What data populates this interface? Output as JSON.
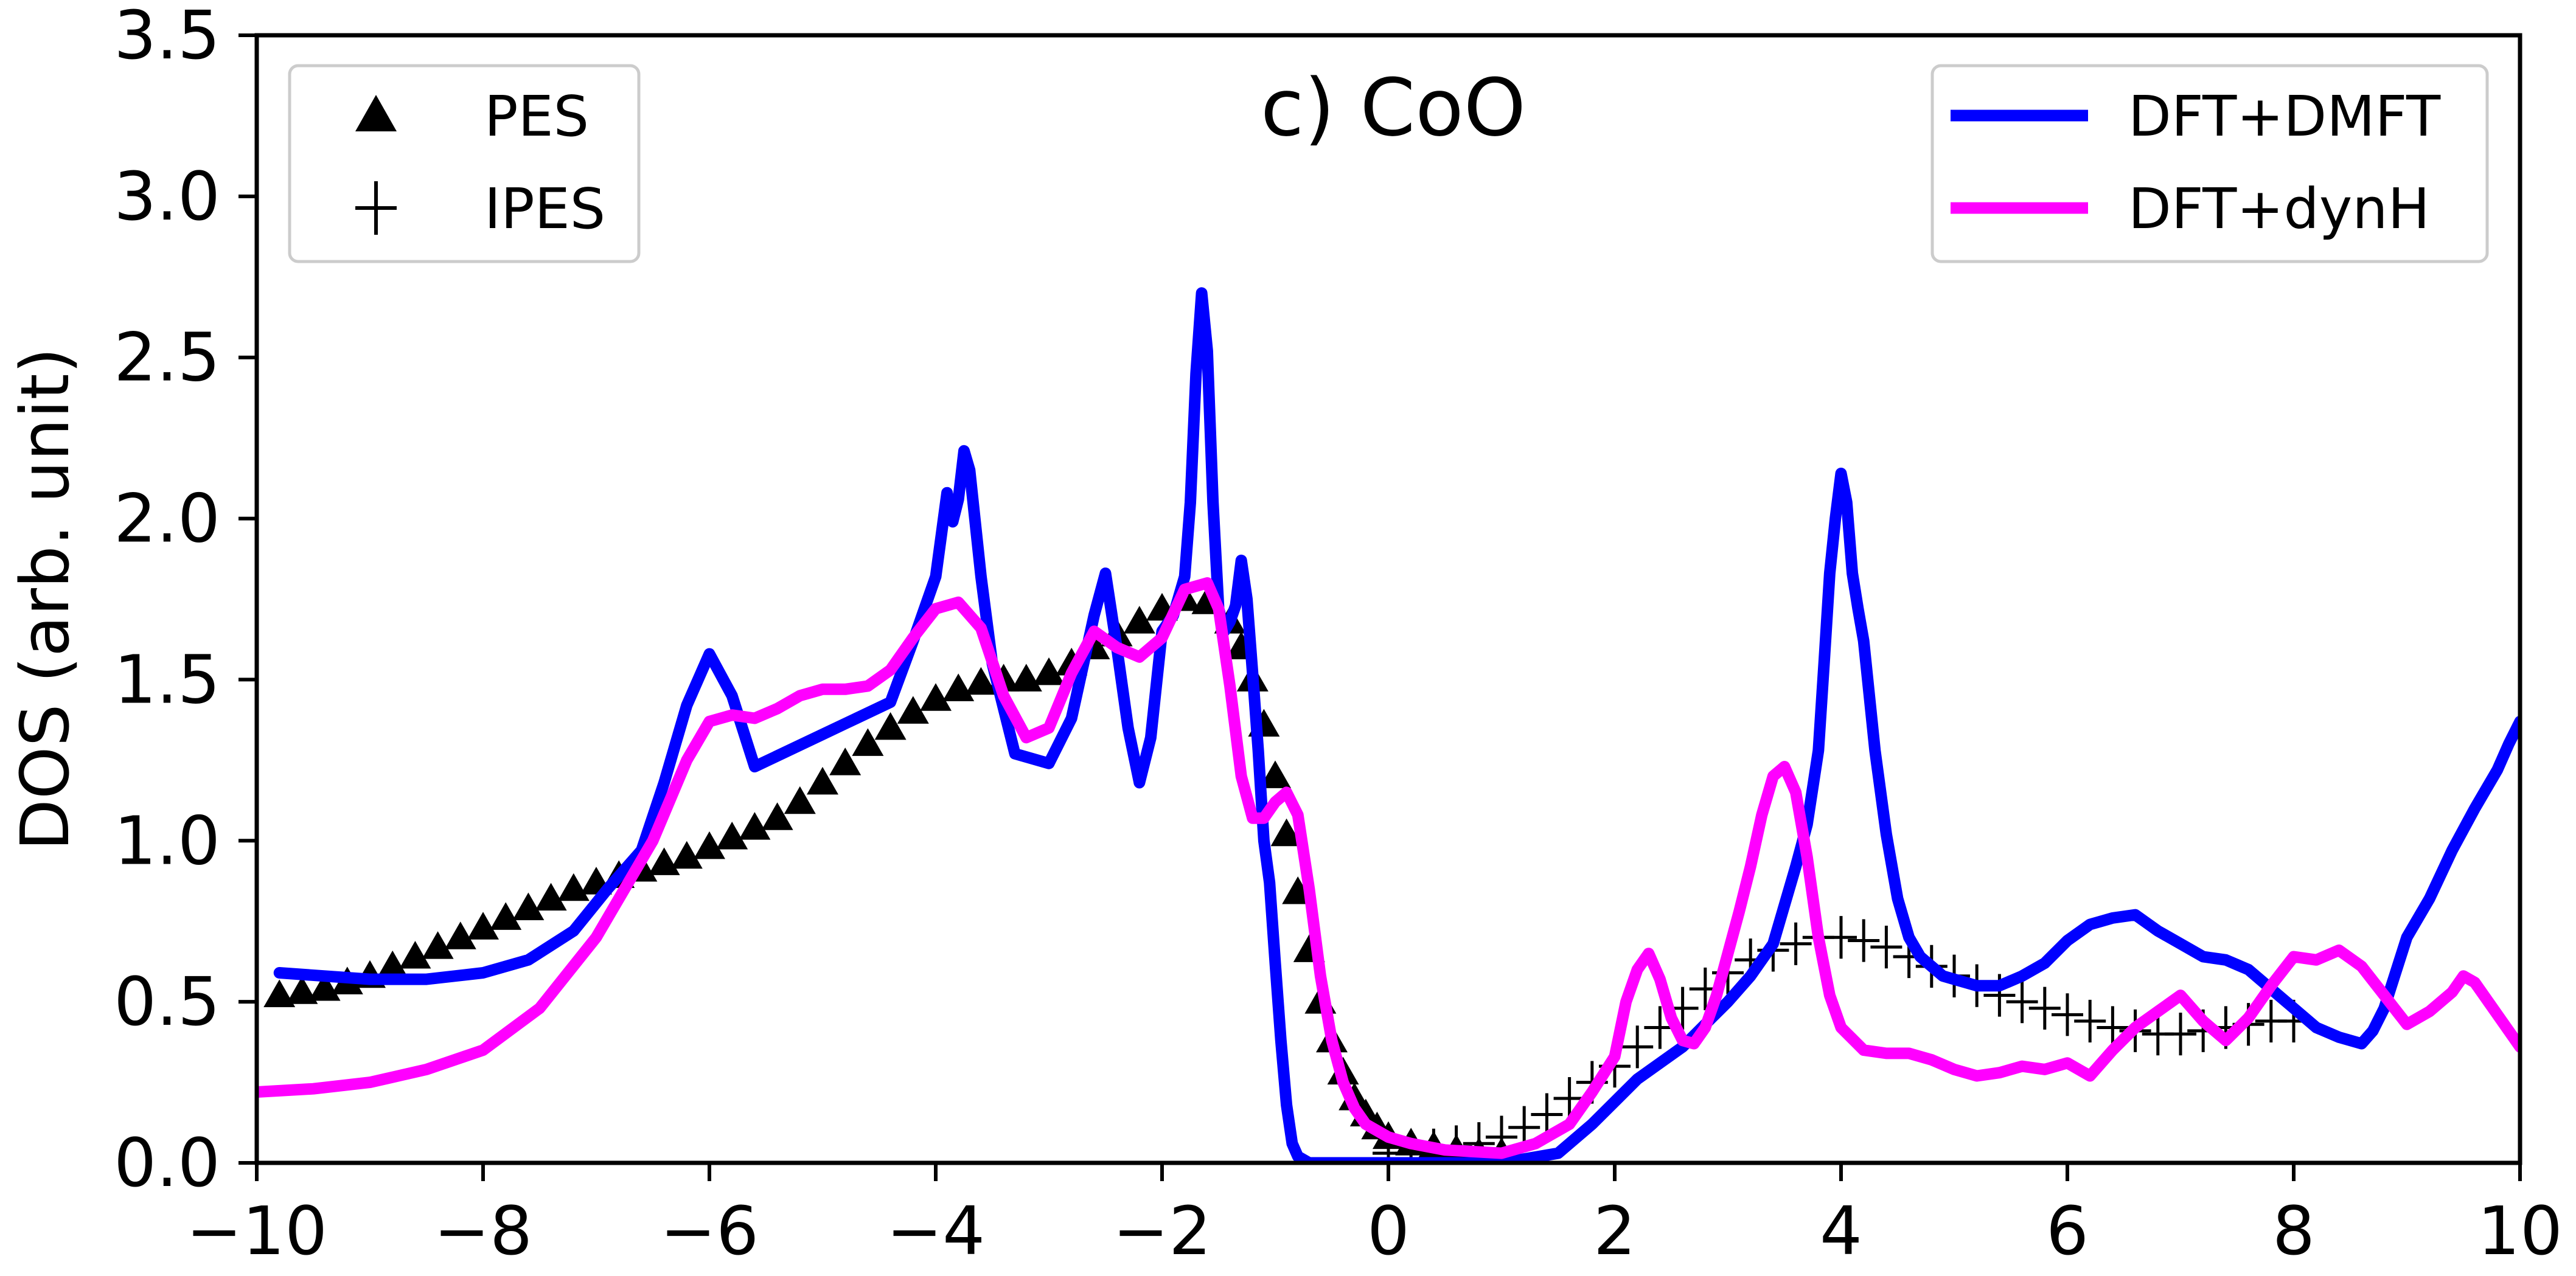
{
  "chart_data": {
    "type": "line",
    "title": "c) CoO",
    "xlabel": "",
    "ylabel": "DOS (arb. unit)",
    "xlim": [
      -10,
      10
    ],
    "ylim": [
      0,
      3.5
    ],
    "grid": false,
    "xticks": [
      -10,
      -8,
      -6,
      -4,
      -2,
      0,
      2,
      4,
      6,
      8,
      10
    ],
    "xtick_labels": [
      "−10",
      "−8",
      "−6",
      "−4",
      "−2",
      "0",
      "2",
      "4",
      "6",
      "8",
      "10"
    ],
    "yticks": [
      0,
      0.5,
      1.0,
      1.5,
      2.0,
      2.5,
      3.0,
      3.5
    ],
    "ytick_labels": [
      "0.0",
      "0.5",
      "1.0",
      "1.5",
      "2.0",
      "2.5",
      "3.0",
      "3.5"
    ],
    "legends": [
      {
        "placement": "top-left",
        "entries": [
          {
            "label": "PES",
            "marker": "triangle"
          },
          {
            "label": "IPES",
            "marker": "plus"
          }
        ]
      },
      {
        "placement": "top-right",
        "entries": [
          {
            "label": "DFT+DMFT",
            "color": "#0000ff"
          },
          {
            "label": "DFT+dynH",
            "color": "#ff00ff"
          }
        ]
      }
    ],
    "series": [
      {
        "name": "DFT+DMFT",
        "kind": "line",
        "color": "#0000ff",
        "x": [
          -9.8,
          -9.0,
          -8.5,
          -8.0,
          -7.6,
          -7.2,
          -6.9,
          -6.6,
          -6.4,
          -6.2,
          -6.0,
          -5.8,
          -5.6,
          -5.3,
          -5.0,
          -4.7,
          -4.4,
          -4.2,
          -4.0,
          -3.95,
          -3.9,
          -3.85,
          -3.8,
          -3.75,
          -3.7,
          -3.6,
          -3.5,
          -3.3,
          -3.0,
          -2.8,
          -2.6,
          -2.5,
          -2.4,
          -2.3,
          -2.2,
          -2.1,
          -2.0,
          -1.9,
          -1.8,
          -1.75,
          -1.7,
          -1.65,
          -1.6,
          -1.55,
          -1.5,
          -1.45,
          -1.4,
          -1.35,
          -1.3,
          -1.25,
          -1.2,
          -1.15,
          -1.1,
          -1.05,
          -1.0,
          -0.95,
          -0.9,
          -0.85,
          -0.8,
          -0.7,
          -0.6,
          -0.5,
          -0.4,
          -0.3,
          -0.2,
          -0.1,
          0.0,
          0.2,
          0.5,
          1.0,
          1.5,
          1.8,
          2.0,
          2.2,
          2.4,
          2.6,
          2.8,
          3.0,
          3.2,
          3.4,
          3.6,
          3.7,
          3.8,
          3.85,
          3.9,
          3.95,
          4.0,
          4.05,
          4.1,
          4.15,
          4.2,
          4.3,
          4.4,
          4.5,
          4.6,
          4.7,
          4.8,
          4.9,
          5.0,
          5.2,
          5.4,
          5.6,
          5.8,
          6.0,
          6.2,
          6.4,
          6.6,
          6.8,
          7.0,
          7.2,
          7.4,
          7.6,
          7.8,
          8.0,
          8.2,
          8.4,
          8.6,
          8.7,
          8.8,
          9.0,
          9.2,
          9.4,
          9.6,
          9.8,
          9.9,
          10.0
        ],
        "y": [
          0.59,
          0.57,
          0.57,
          0.59,
          0.63,
          0.72,
          0.85,
          0.97,
          1.18,
          1.42,
          1.58,
          1.45,
          1.23,
          1.28,
          1.33,
          1.38,
          1.43,
          1.62,
          1.82,
          1.95,
          2.08,
          1.99,
          2.06,
          2.21,
          2.15,
          1.82,
          1.55,
          1.27,
          1.24,
          1.38,
          1.7,
          1.83,
          1.6,
          1.35,
          1.18,
          1.32,
          1.65,
          1.7,
          1.82,
          2.05,
          2.45,
          2.7,
          2.52,
          2.05,
          1.72,
          1.65,
          1.68,
          1.73,
          1.87,
          1.75,
          1.52,
          1.28,
          1.0,
          0.87,
          0.62,
          0.38,
          0.18,
          0.06,
          0.02,
          0.0,
          0.0,
          0.0,
          0.0,
          0.0,
          0.0,
          0.0,
          0.0,
          0.0,
          0.0,
          0.0,
          0.03,
          0.12,
          0.19,
          0.26,
          0.31,
          0.36,
          0.43,
          0.5,
          0.58,
          0.68,
          0.92,
          1.05,
          1.28,
          1.55,
          1.83,
          2.0,
          2.14,
          2.05,
          1.83,
          1.72,
          1.62,
          1.28,
          1.02,
          0.82,
          0.7,
          0.64,
          0.61,
          0.58,
          0.57,
          0.55,
          0.55,
          0.58,
          0.62,
          0.69,
          0.74,
          0.76,
          0.77,
          0.72,
          0.68,
          0.64,
          0.63,
          0.6,
          0.54,
          0.48,
          0.42,
          0.39,
          0.37,
          0.41,
          0.48,
          0.7,
          0.82,
          0.97,
          1.1,
          1.22,
          1.3,
          1.37
        ]
      },
      {
        "name": "DFT+dynH",
        "kind": "line",
        "color": "#ff00ff",
        "x": [
          -10.0,
          -9.5,
          -9.0,
          -8.5,
          -8.0,
          -7.5,
          -7.0,
          -6.5,
          -6.2,
          -6.0,
          -5.8,
          -5.6,
          -5.4,
          -5.2,
          -5.0,
          -4.8,
          -4.6,
          -4.4,
          -4.2,
          -4.0,
          -3.8,
          -3.6,
          -3.4,
          -3.2,
          -3.0,
          -2.8,
          -2.6,
          -2.4,
          -2.2,
          -2.0,
          -1.8,
          -1.6,
          -1.5,
          -1.4,
          -1.3,
          -1.2,
          -1.1,
          -1.0,
          -0.9,
          -0.8,
          -0.7,
          -0.6,
          -0.5,
          -0.4,
          -0.3,
          -0.2,
          0.0,
          0.2,
          0.5,
          1.0,
          1.3,
          1.6,
          1.8,
          2.0,
          2.1,
          2.2,
          2.3,
          2.4,
          2.5,
          2.6,
          2.7,
          2.8,
          2.9,
          3.0,
          3.1,
          3.2,
          3.3,
          3.4,
          3.5,
          3.6,
          3.7,
          3.8,
          3.9,
          4.0,
          4.2,
          4.4,
          4.6,
          4.8,
          5.0,
          5.2,
          5.4,
          5.6,
          5.8,
          6.0,
          6.2,
          6.4,
          6.6,
          6.8,
          7.0,
          7.2,
          7.4,
          7.6,
          7.8,
          8.0,
          8.2,
          8.4,
          8.6,
          8.8,
          9.0,
          9.2,
          9.4,
          9.5,
          9.6,
          9.8,
          10.0
        ],
        "y": [
          0.22,
          0.23,
          0.25,
          0.29,
          0.35,
          0.48,
          0.7,
          1.0,
          1.25,
          1.37,
          1.39,
          1.38,
          1.41,
          1.45,
          1.47,
          1.47,
          1.48,
          1.53,
          1.63,
          1.72,
          1.74,
          1.66,
          1.45,
          1.32,
          1.35,
          1.52,
          1.65,
          1.6,
          1.57,
          1.63,
          1.78,
          1.8,
          1.72,
          1.48,
          1.2,
          1.07,
          1.07,
          1.12,
          1.15,
          1.08,
          0.85,
          0.58,
          0.38,
          0.25,
          0.17,
          0.12,
          0.08,
          0.06,
          0.04,
          0.03,
          0.06,
          0.12,
          0.22,
          0.33,
          0.5,
          0.6,
          0.65,
          0.57,
          0.45,
          0.38,
          0.37,
          0.42,
          0.52,
          0.65,
          0.78,
          0.92,
          1.08,
          1.2,
          1.23,
          1.15,
          0.95,
          0.7,
          0.52,
          0.42,
          0.35,
          0.34,
          0.34,
          0.32,
          0.29,
          0.27,
          0.28,
          0.3,
          0.29,
          0.31,
          0.27,
          0.35,
          0.42,
          0.47,
          0.52,
          0.44,
          0.38,
          0.45,
          0.55,
          0.64,
          0.63,
          0.66,
          0.61,
          0.52,
          0.43,
          0.47,
          0.53,
          0.58,
          0.56,
          0.46,
          0.36
        ]
      },
      {
        "name": "PES",
        "kind": "scatter",
        "marker": "triangle",
        "color": "#000000",
        "x": [
          -9.8,
          -9.6,
          -9.4,
          -9.2,
          -9.0,
          -8.8,
          -8.6,
          -8.4,
          -8.2,
          -8.0,
          -7.8,
          -7.6,
          -7.4,
          -7.2,
          -7.0,
          -6.8,
          -6.6,
          -6.4,
          -6.2,
          -6.0,
          -5.8,
          -5.6,
          -5.4,
          -5.2,
          -5.0,
          -4.8,
          -4.6,
          -4.4,
          -4.2,
          -4.0,
          -3.8,
          -3.6,
          -3.4,
          -3.2,
          -3.0,
          -2.8,
          -2.6,
          -2.4,
          -2.2,
          -2.0,
          -1.8,
          -1.6,
          -1.4,
          -1.3,
          -1.2,
          -1.1,
          -1.0,
          -0.9,
          -0.8,
          -0.7,
          -0.6,
          -0.5,
          -0.4,
          -0.3,
          -0.2,
          -0.1,
          0.0,
          0.2,
          0.4,
          0.6,
          0.8,
          1.0
        ],
        "y": [
          0.52,
          0.53,
          0.54,
          0.56,
          0.58,
          0.61,
          0.64,
          0.67,
          0.7,
          0.73,
          0.76,
          0.79,
          0.82,
          0.85,
          0.87,
          0.89,
          0.91,
          0.93,
          0.95,
          0.98,
          1.01,
          1.04,
          1.07,
          1.12,
          1.18,
          1.24,
          1.3,
          1.35,
          1.4,
          1.44,
          1.47,
          1.49,
          1.5,
          1.5,
          1.52,
          1.55,
          1.6,
          1.64,
          1.68,
          1.72,
          1.75,
          1.74,
          1.68,
          1.6,
          1.5,
          1.36,
          1.2,
          1.02,
          0.84,
          0.66,
          0.5,
          0.38,
          0.28,
          0.2,
          0.15,
          0.11,
          0.08,
          0.06,
          0.05,
          0.04,
          0.03,
          0.03
        ]
      },
      {
        "name": "IPES",
        "kind": "scatter",
        "marker": "plus",
        "color": "#000000",
        "x": [
          0.0,
          0.2,
          0.4,
          0.6,
          0.8,
          1.0,
          1.2,
          1.4,
          1.6,
          1.8,
          2.0,
          2.2,
          2.4,
          2.6,
          2.8,
          3.0,
          3.2,
          3.4,
          3.6,
          3.8,
          4.0,
          4.2,
          4.4,
          4.6,
          4.8,
          5.0,
          5.2,
          5.4,
          5.6,
          5.8,
          6.0,
          6.2,
          6.4,
          6.6,
          6.8,
          7.0,
          7.2,
          7.4,
          7.6,
          7.8,
          8.0
        ],
        "y": [
          0.03,
          0.03,
          0.04,
          0.05,
          0.06,
          0.08,
          0.11,
          0.15,
          0.2,
          0.25,
          0.3,
          0.36,
          0.42,
          0.48,
          0.54,
          0.59,
          0.63,
          0.66,
          0.68,
          0.7,
          0.7,
          0.69,
          0.67,
          0.64,
          0.61,
          0.58,
          0.55,
          0.52,
          0.5,
          0.48,
          0.46,
          0.44,
          0.42,
          0.41,
          0.4,
          0.4,
          0.41,
          0.42,
          0.43,
          0.44,
          0.44
        ]
      }
    ]
  }
}
